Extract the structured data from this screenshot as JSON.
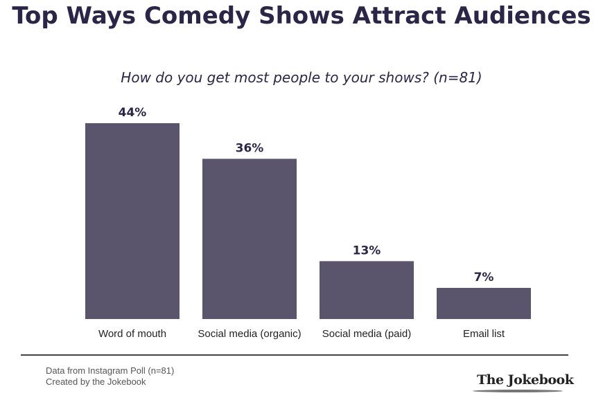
{
  "chart_data": {
    "type": "bar",
    "title": "Top Ways Comedy Shows Attract Audiences",
    "subtitle": "How do you get most people to your shows? (n=81)",
    "categories": [
      "Word of mouth",
      "Social media (organic)",
      "Social media (paid)",
      "Email list"
    ],
    "values": [
      44,
      36,
      13,
      7
    ],
    "data_labels": [
      "44%",
      "36%",
      "13%",
      "7%"
    ],
    "xlabel": "",
    "ylabel": "",
    "ylim": [
      0,
      44
    ],
    "grid": false,
    "bar_color": "#5a546d",
    "text_color": "#2b2547"
  },
  "footer": {
    "source": "Data from Instagram Poll (n=81)",
    "credit": "Created by the Jokebook",
    "logo_text": "The Jokebook"
  }
}
